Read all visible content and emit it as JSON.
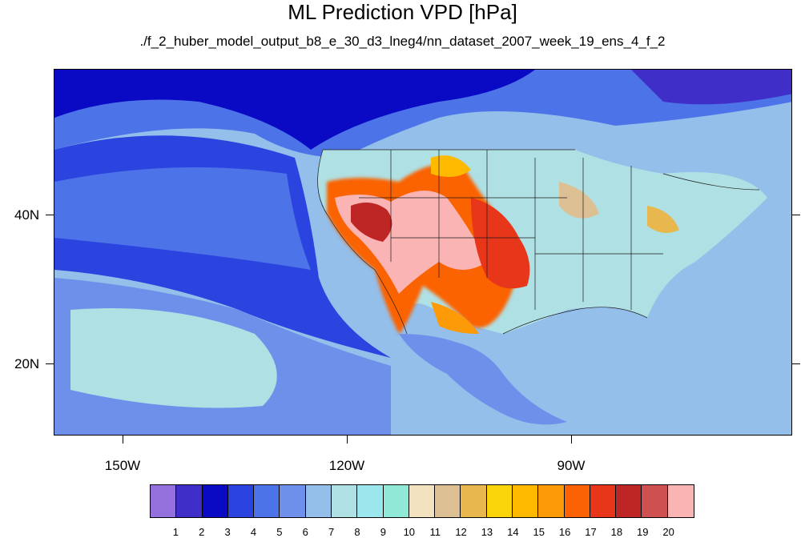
{
  "title": "ML Prediction VPD [hPa]",
  "subtitle": "./f_2_huber_model_output_b8_e_30_d3_lneg4/nn_dataset_2007_week_19_ens_4_f_2",
  "lat_labels": [
    "40N",
    "20N"
  ],
  "lon_labels": [
    "150W",
    "120W",
    "90W"
  ],
  "colorbar": {
    "colors": [
      "#9370db",
      "#3f2fc8",
      "#0a0ac4",
      "#2b44e0",
      "#4d73e8",
      "#6f90ea",
      "#93bfea",
      "#afe0e4",
      "#9ce6ee",
      "#90e8d6",
      "#f2e2c0",
      "#dcc094",
      "#e8b84e",
      "#fad40a",
      "#ffba00",
      "#fd9a08",
      "#fb6204",
      "#e7361a",
      "#be2626",
      "#cf5050",
      "#fab4b4"
    ],
    "labels": [
      "1",
      "2",
      "3",
      "4",
      "5",
      "6",
      "7",
      "8",
      "9",
      "10",
      "11",
      "12",
      "13",
      "14",
      "15",
      "16",
      "17",
      "18",
      "19",
      "20"
    ]
  }
}
